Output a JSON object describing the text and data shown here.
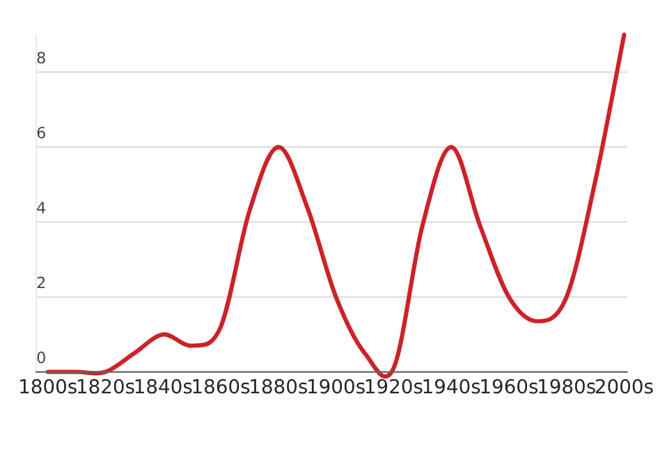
{
  "chart_data": {
    "type": "line",
    "categories": [
      "1800s",
      null,
      "1820s",
      null,
      "1840s",
      null,
      "1860s",
      null,
      "1880s",
      null,
      "1900s",
      null,
      "1920s",
      null,
      "1940s",
      null,
      "1960s",
      null,
      "1980s",
      null,
      "2000s"
    ],
    "series": [
      {
        "color": "#cc2229",
        "values": [
          0,
          0,
          0,
          0.5,
          1,
          0.7,
          1.2,
          4.3,
          6,
          4.4,
          2,
          0.5,
          0.1,
          3.9,
          6,
          3.9,
          2,
          1.35,
          2,
          5.1,
          9
        ]
      }
    ],
    "ylim": [
      0,
      9
    ],
    "yticks": [
      0,
      2,
      4,
      6,
      8
    ],
    "grid": "y",
    "marker": "none",
    "line_style": "solid"
  }
}
